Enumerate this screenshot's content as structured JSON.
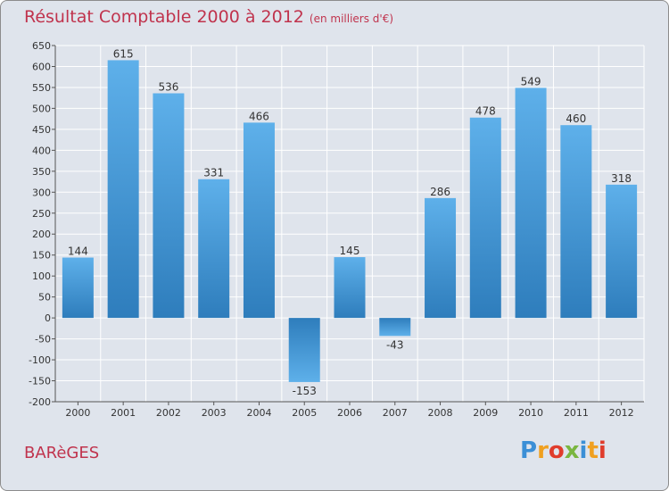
{
  "chart_data": {
    "type": "bar",
    "title": "Résultat Comptable 2000 à 2012",
    "subtitle": "(en milliers d'€)",
    "categories": [
      "2000",
      "2001",
      "2002",
      "2003",
      "2004",
      "2005",
      "2006",
      "2007",
      "2008",
      "2009",
      "2010",
      "2011",
      "2012"
    ],
    "values": [
      144,
      615,
      536,
      331,
      466,
      -153,
      145,
      -43,
      286,
      478,
      549,
      460,
      318
    ],
    "ylim": [
      -200,
      650
    ],
    "ytick_step": 50,
    "grid": true,
    "xlabel": "",
    "ylabel": ""
  },
  "footer": {
    "commune": "BARèGES",
    "logo_letters": [
      "P",
      "r",
      "o",
      "x",
      "i",
      "t",
      "i"
    ],
    "logo_colors": [
      "#3b8fd6",
      "#f0a020",
      "#e03c2c",
      "#7ab640",
      "#3b8fd6",
      "#f0a020",
      "#e03c2c"
    ]
  },
  "colors": {
    "title": "#c0334d",
    "bar_dark": "#2e7dbc",
    "bar_light": "#5eb0ea",
    "grid": "#ffffff"
  }
}
